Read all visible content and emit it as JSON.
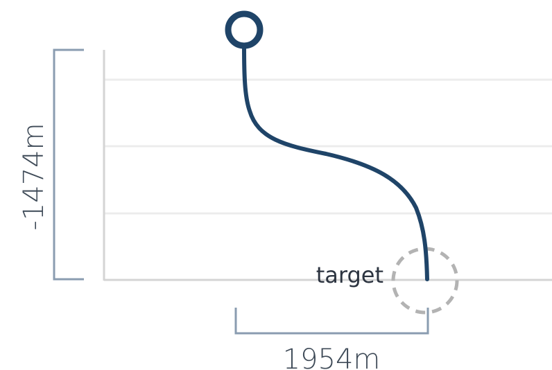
{
  "diagram": {
    "vertical_dimension_label": "-1474m",
    "horizontal_dimension_label": "1954m",
    "target_label": "target",
    "colors": {
      "path": "#1f4468",
      "start_marker": "#1f4468",
      "target_marker": "#b3b3b3",
      "gridline": "#ececec",
      "axis": "#d4d4d4",
      "bracket": "#8a9cb0",
      "text": "#2c3440"
    }
  }
}
